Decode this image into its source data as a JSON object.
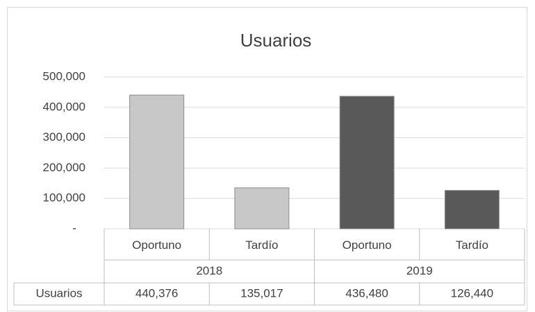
{
  "chart_data": {
    "type": "bar",
    "title": "Usuarios",
    "categories": [
      "Oportuno",
      "Tardío",
      "Oportuno",
      "Tardío"
    ],
    "groups": [
      "2018",
      "2019"
    ],
    "series": [
      {
        "name": "Usuarios",
        "values": [
          440376,
          135017,
          436480,
          126440
        ],
        "value_labels": [
          "440,376",
          "135,017",
          "436,480",
          "126,440"
        ],
        "colors": [
          "#c8c8c8",
          "#c8c8c8",
          "#595959",
          "#595959"
        ]
      }
    ],
    "ylim": [
      0,
      500000
    ],
    "yticks": [
      {
        "value": 0,
        "label": "-"
      },
      {
        "value": 100000,
        "label": "100,000"
      },
      {
        "value": 200000,
        "label": "200,000"
      },
      {
        "value": 300000,
        "label": "300,000"
      },
      {
        "value": 400000,
        "label": "400,000"
      },
      {
        "value": 500000,
        "label": "500,000"
      }
    ],
    "grid": true,
    "data_table": true
  }
}
